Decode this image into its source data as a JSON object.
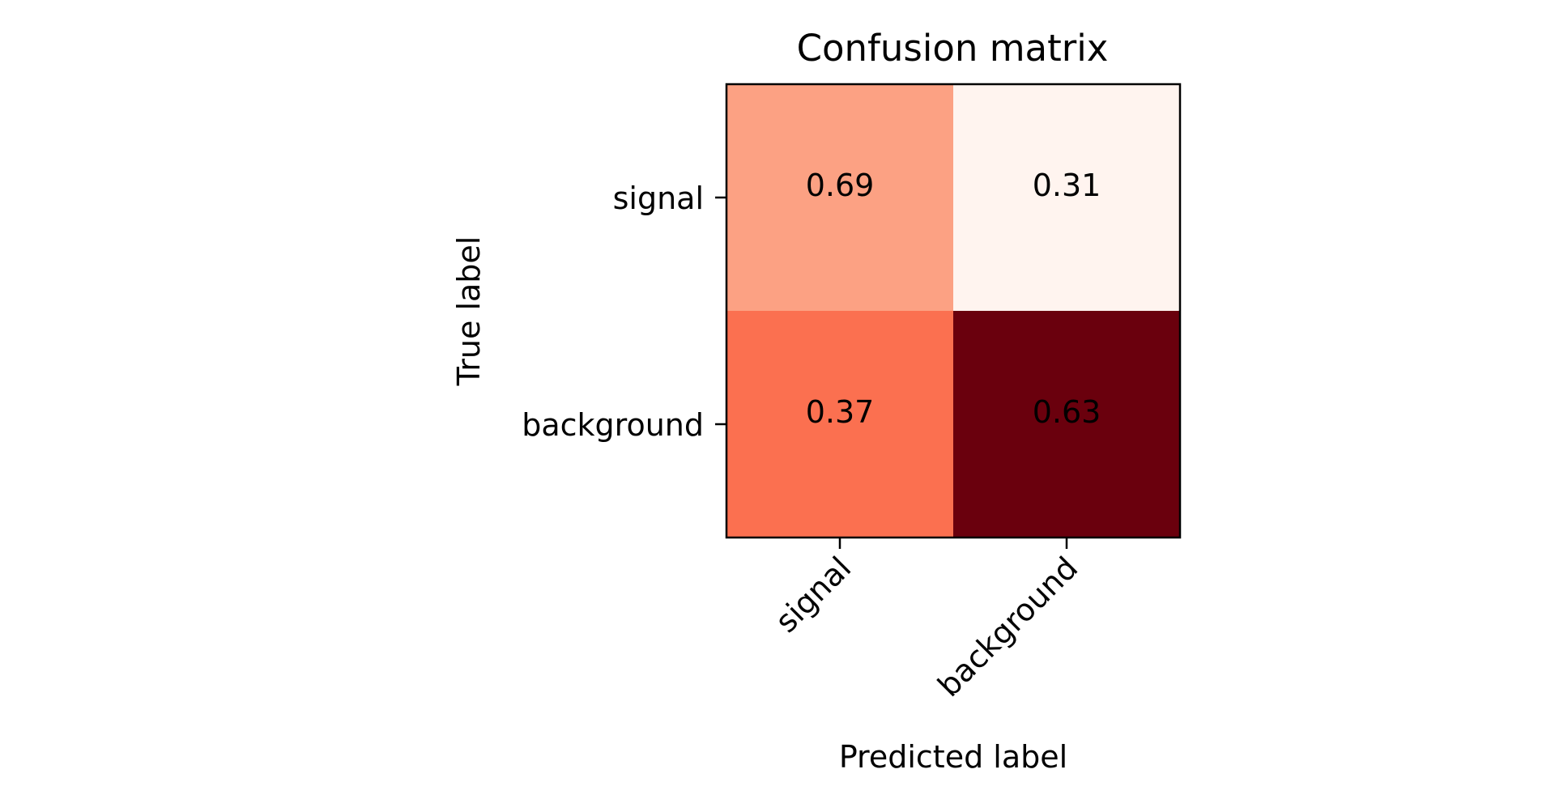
{
  "chart_data": {
    "type": "heatmap",
    "title": "Confusion matrix",
    "xlabel": "Predicted label",
    "ylabel": "True label",
    "x_categories": [
      "signal",
      "background"
    ],
    "y_categories": [
      "signal",
      "background"
    ],
    "values": [
      [
        0.69,
        0.31
      ],
      [
        0.37,
        0.63
      ]
    ],
    "cell_colors": [
      [
        "#fca183",
        "#fff4ef"
      ],
      [
        "#fb7050",
        "#6a000d"
      ]
    ],
    "colormap": "Reds",
    "x_tick_rotation_deg": 45,
    "grid": false
  }
}
